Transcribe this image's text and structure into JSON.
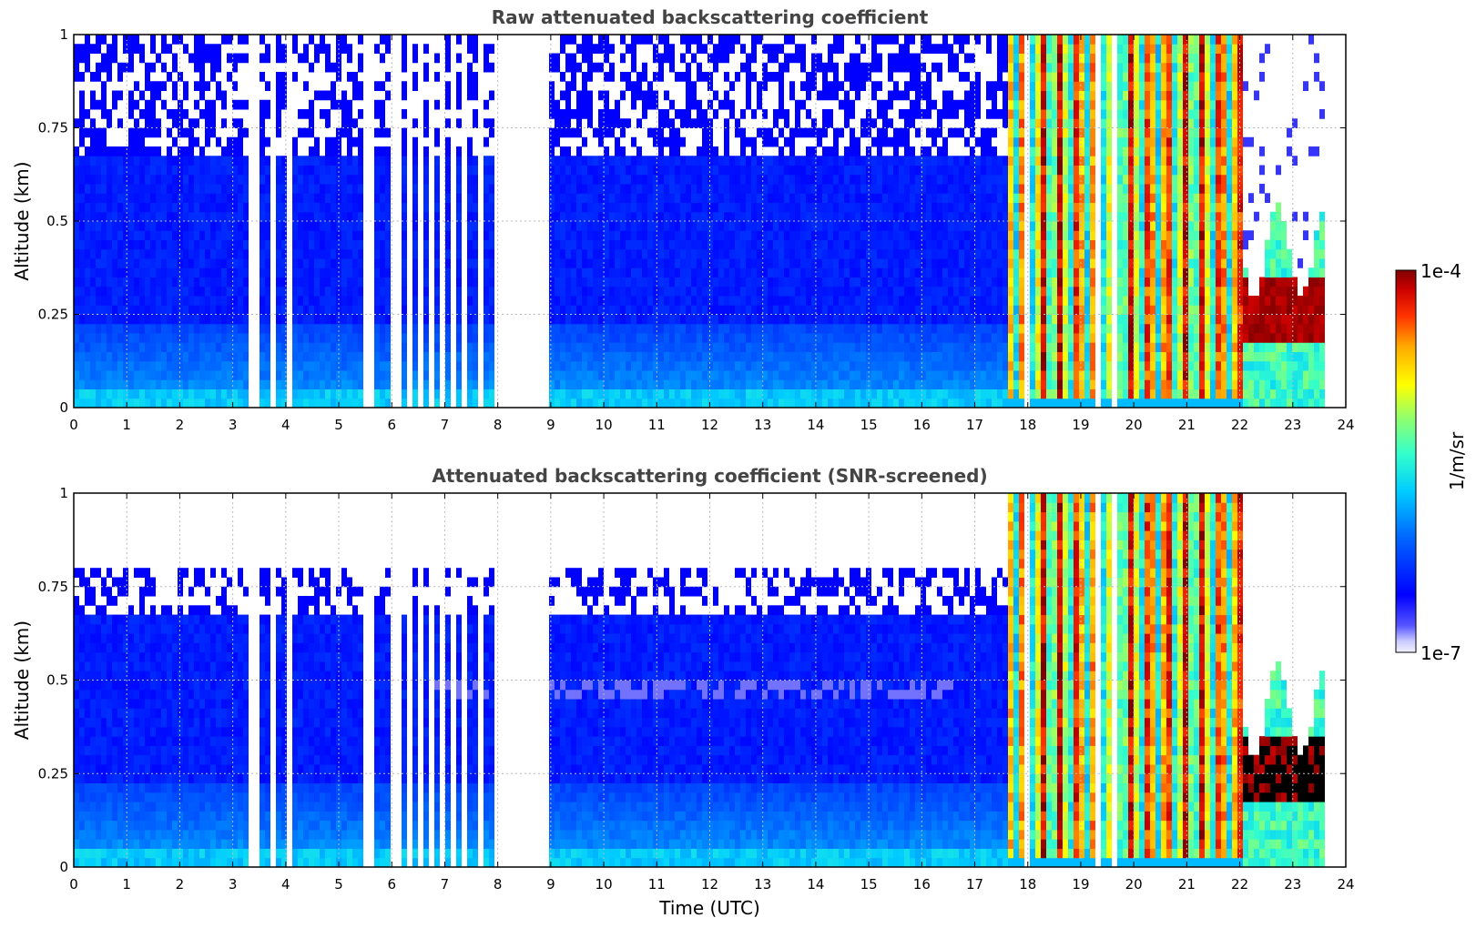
{
  "colors": {
    "title": "#444444",
    "grid": "#bbbbbb"
  },
  "chart_data": [
    {
      "type": "heatmap",
      "title": "Raw attenuated backscattering coefficient",
      "xlabel": "",
      "ylabel": "Altitude (km)",
      "xlim": [
        0,
        24
      ],
      "ylim": [
        0,
        1
      ],
      "xticks": [
        "0",
        "1",
        "2",
        "3",
        "4",
        "5",
        "6",
        "7",
        "8",
        "9",
        "10",
        "11",
        "12",
        "13",
        "14",
        "15",
        "16",
        "17",
        "18",
        "19",
        "20",
        "21",
        "22",
        "23",
        "24"
      ],
      "yticks": [
        "0",
        "0.25",
        "0.5",
        "0.75",
        "1"
      ],
      "grid": true,
      "data_end_hour": 23.6,
      "noisy": true,
      "aerosol_layer_top_km": 0.68,
      "dense_band_km": [
        0.0,
        0.05
      ],
      "cloud_period_hours": [
        17.6,
        22.0
      ],
      "low_cloud_period_hours": [
        22.0,
        23.6
      ],
      "missing_profiles_hours": [
        3.35,
        3.75,
        4.05,
        5.5,
        5.6,
        5.95,
        6.1,
        6.3,
        6.5,
        6.7,
        6.9,
        7.1,
        7.35,
        7.6,
        7.9,
        8.1,
        8.3,
        8.5,
        8.6,
        8.75,
        8.9,
        17.9,
        19.3,
        19.55
      ]
    },
    {
      "type": "heatmap",
      "title": "Attenuated backscattering coefficient (SNR-screened)",
      "xlabel": "Time (UTC)",
      "ylabel": "Altitude (km)",
      "xlim": [
        0,
        24
      ],
      "ylim": [
        0,
        1
      ],
      "xticks": [
        "0",
        "1",
        "2",
        "3",
        "4",
        "5",
        "6",
        "7",
        "8",
        "9",
        "10",
        "11",
        "12",
        "13",
        "14",
        "15",
        "16",
        "17",
        "18",
        "19",
        "20",
        "21",
        "22",
        "23",
        "24"
      ],
      "yticks": [
        "0",
        "0.25",
        "0.5",
        "0.75",
        "1"
      ],
      "grid": true,
      "data_end_hour": 23.6,
      "noisy": false,
      "aerosol_layer_top_km": 0.68,
      "dense_band_km": [
        0.0,
        0.05
      ],
      "cloud_period_hours": [
        17.6,
        22.0
      ],
      "low_cloud_period_hours": [
        22.0,
        23.6
      ],
      "missing_profiles_hours": [
        3.35,
        3.75,
        4.05,
        5.5,
        5.6,
        5.95,
        6.1,
        6.3,
        6.5,
        6.7,
        6.9,
        7.1,
        7.35,
        7.6,
        7.9,
        8.1,
        8.3,
        8.5,
        8.6,
        8.75,
        8.9,
        17.9,
        19.3,
        19.55
      ]
    }
  ],
  "colorbar": {
    "max_label": "1e-4",
    "min_label": "1e-7",
    "unit_label": "1/m/sr",
    "scale": "log",
    "range": [
      1e-07,
      0.0001
    ]
  }
}
